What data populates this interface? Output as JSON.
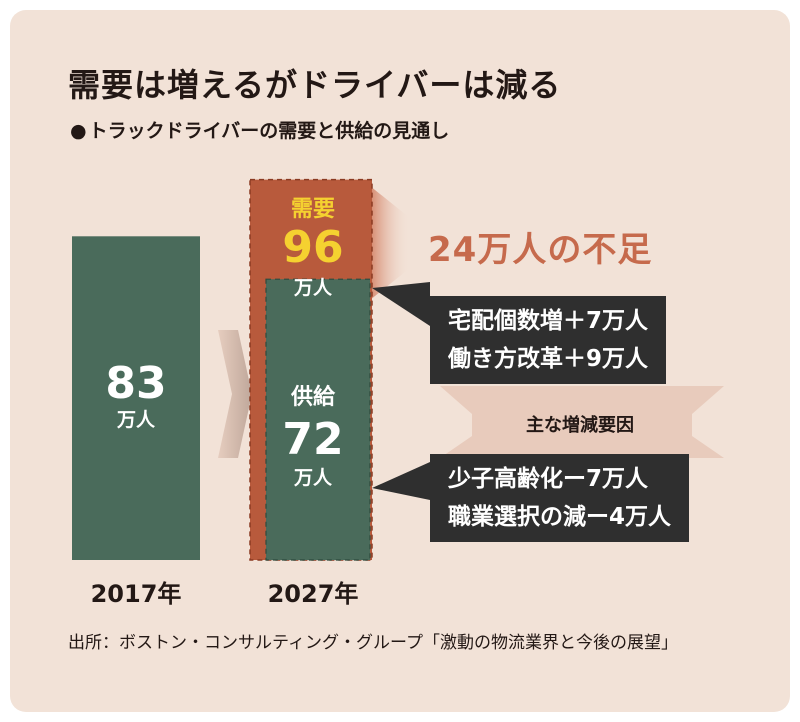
{
  "title": "需要は増えるがドライバーは減る",
  "subtitle": "トラックドライバーの需要と供給の見通し",
  "colors": {
    "supply": "#4a6b5b",
    "demand": "#b85a3c",
    "demand_text": "#f5d130",
    "shortfall": "#c66a4c",
    "box": "#2f2f2f",
    "background": "#f2e2d7"
  },
  "chart_data": {
    "type": "bar",
    "categories": [
      "2017年",
      "2027年"
    ],
    "series": [
      {
        "name": "供給",
        "values": [
          83,
          72
        ]
      },
      {
        "name": "需要",
        "values": [
          null,
          96
        ]
      }
    ],
    "unit": "万人",
    "annotations": {
      "shortfall": "24万人の不足",
      "increase_factors": [
        "宅配個数増＋7万人",
        "働き方改革＋9万人"
      ],
      "decrease_factors": [
        "少子高齢化ー7万人",
        "職業選択の減ー4万人"
      ],
      "factors_label": "主な増減要因"
    }
  },
  "labels": {
    "bar2017_value": "83",
    "bar2017_unit": "万人",
    "demand_label": "需要",
    "demand_value": "96",
    "demand_unit": "万人",
    "supply_label": "供給",
    "supply_value": "72",
    "supply_unit": "万人"
  },
  "source": "出所：ボストン・コンサルティング・グループ「激動の物流業界と今後の展望」"
}
